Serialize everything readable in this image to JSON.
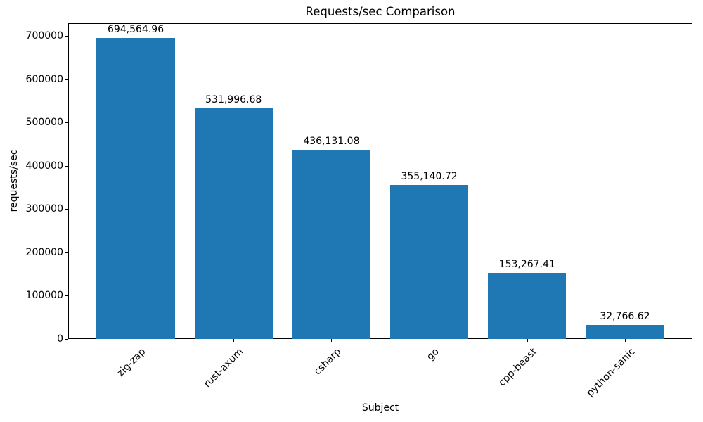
{
  "chart_data": {
    "type": "bar",
    "title": "Requests/sec Comparison",
    "xlabel": "Subject",
    "ylabel": "requests/sec",
    "categories": [
      "zig-zap",
      "rust-axum",
      "csharp",
      "go",
      "cpp-beast",
      "python-sanic"
    ],
    "values": [
      694564.96,
      531996.68,
      436131.08,
      355140.72,
      153267.41,
      32766.62
    ],
    "value_labels": [
      "694,564.96",
      "531,996.68",
      "436,131.08",
      "355,140.72",
      "153,267.41",
      "32,766.62"
    ],
    "y_ticks": [
      0,
      100000,
      200000,
      300000,
      400000,
      500000,
      600000,
      700000
    ],
    "y_tick_labels": [
      "0",
      "100000",
      "200000",
      "300000",
      "400000",
      "500000",
      "600000",
      "700000"
    ],
    "ylim": [
      0,
      729293
    ],
    "bar_color": "#1f77b4",
    "grid": false,
    "legend_position": "none",
    "x_tick_rotation_deg": 45
  }
}
